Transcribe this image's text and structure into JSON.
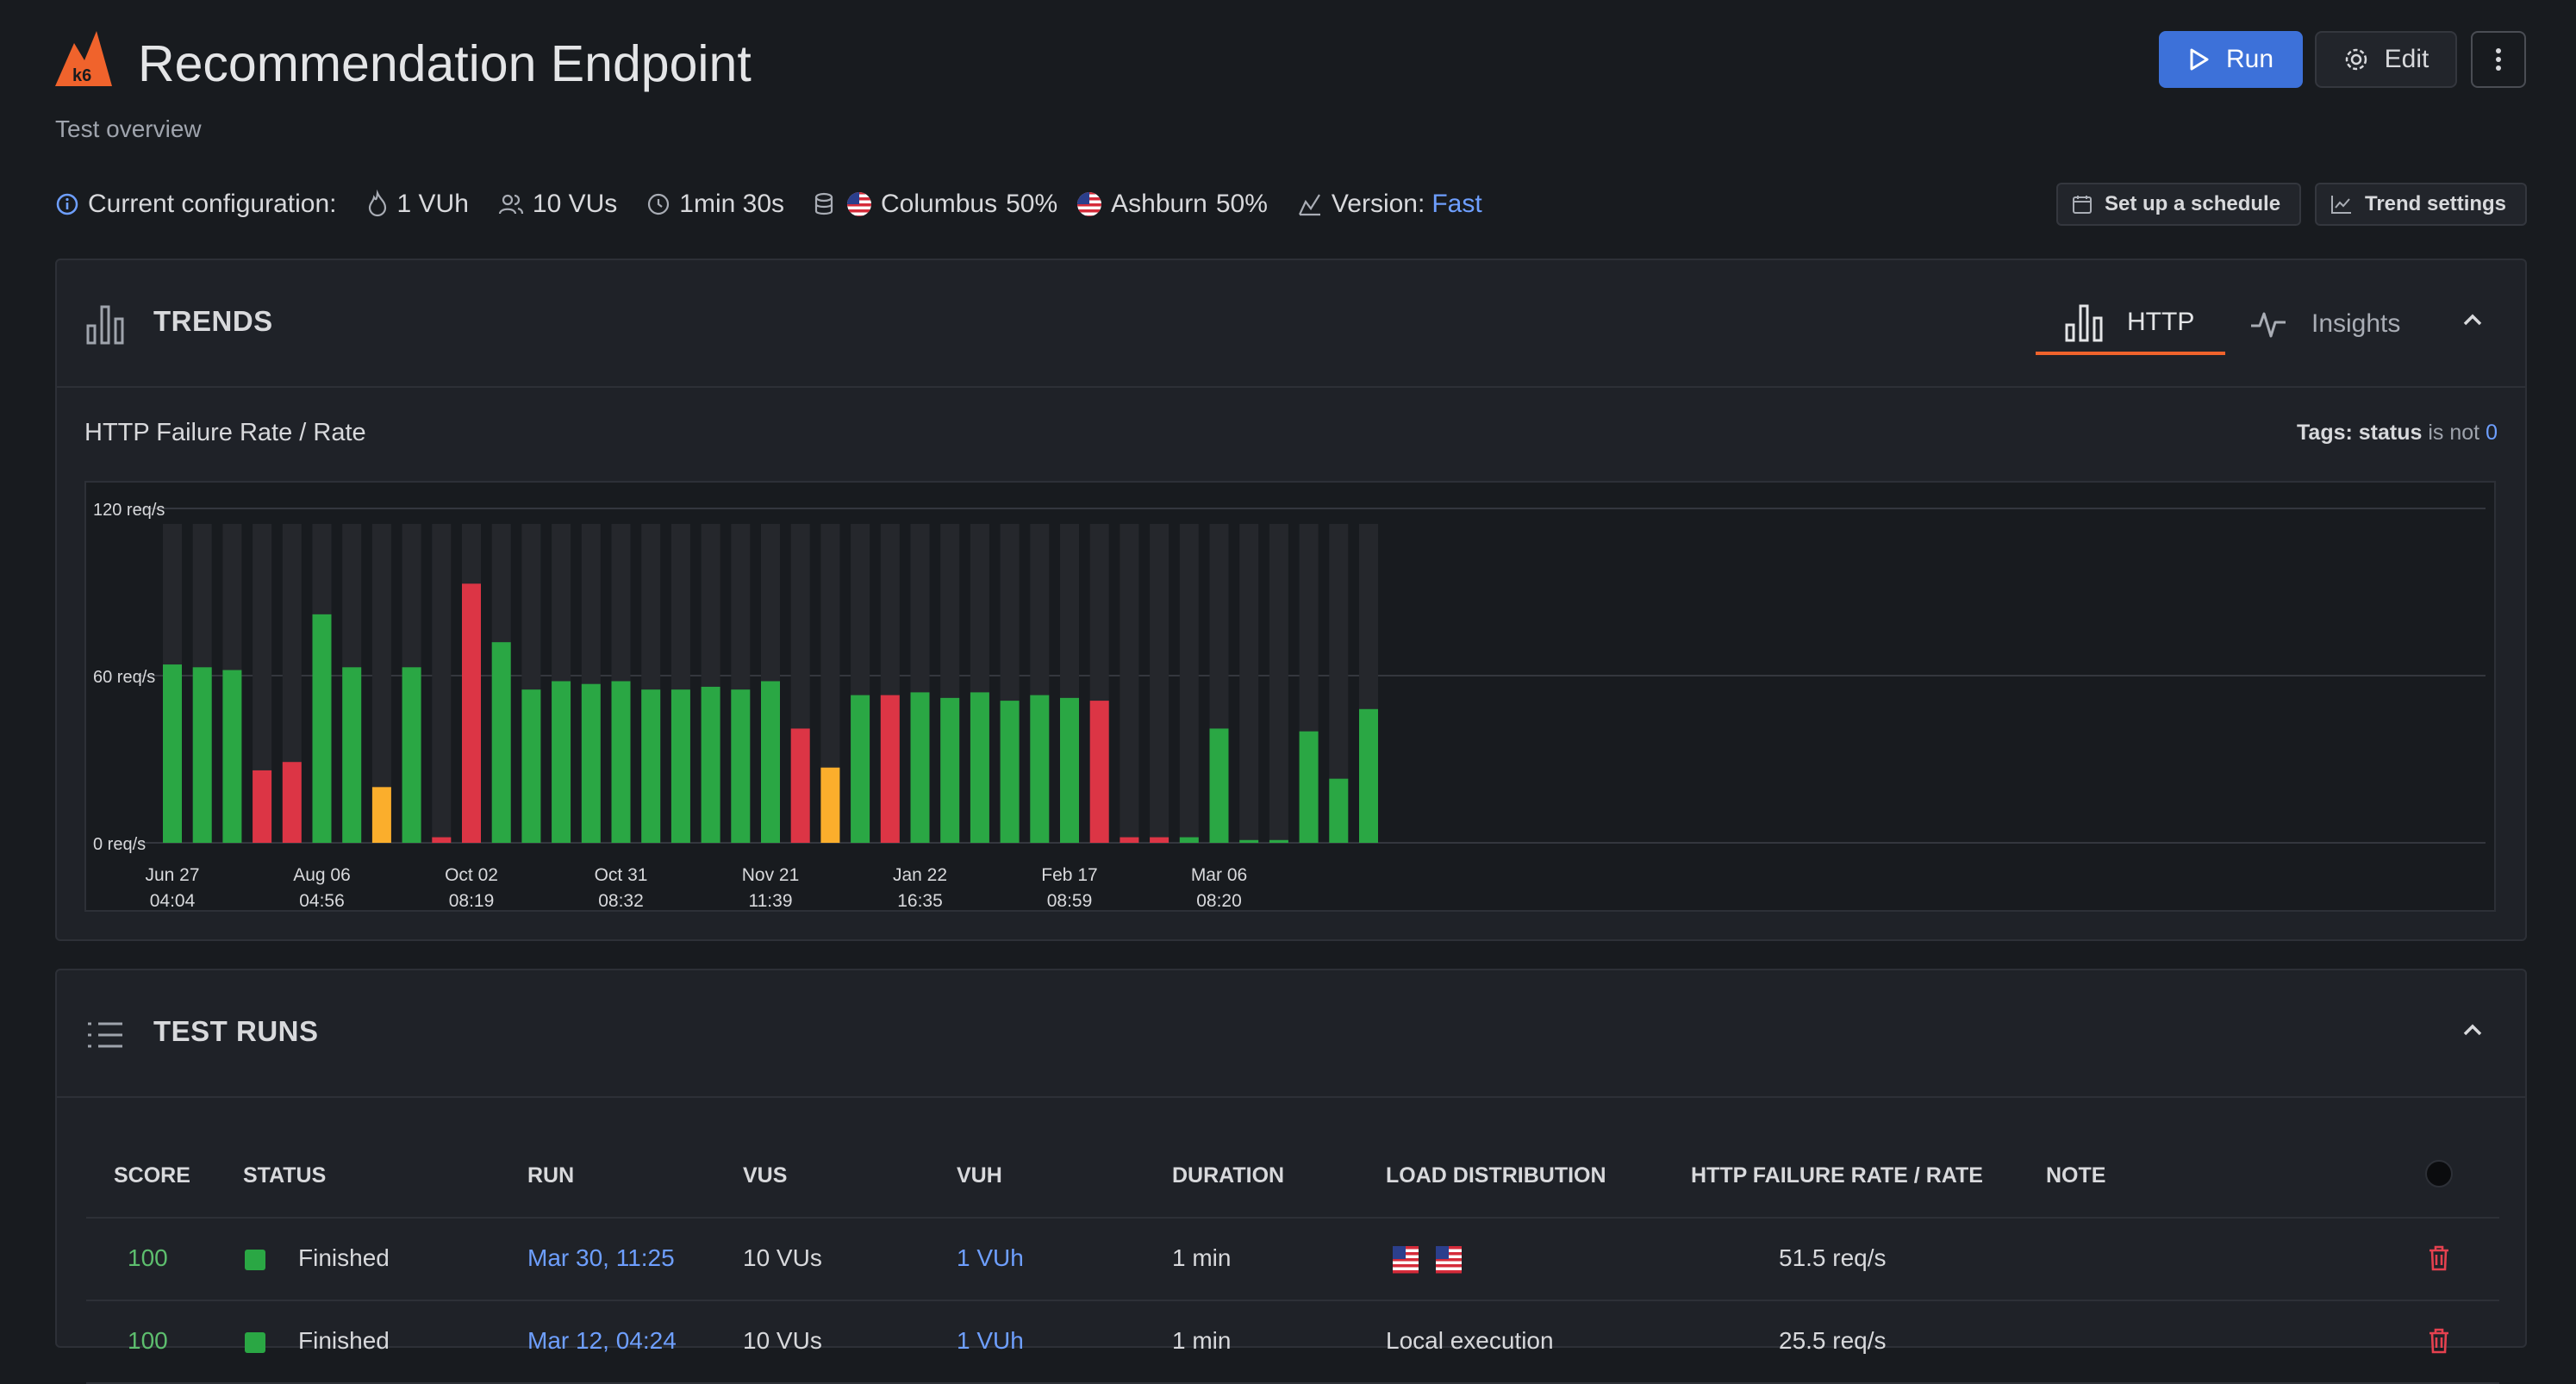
{
  "header": {
    "title": "Recommendation Endpoint",
    "subtitle": "Test overview",
    "run_label": "Run",
    "edit_label": "Edit",
    "logo_text": "k6"
  },
  "config": {
    "label": "Current configuration:",
    "vuh": "1 VUh",
    "vus": "10 VUs",
    "duration": "1min 30s",
    "locations": [
      {
        "name": "Columbus",
        "share": "50%"
      },
      {
        "name": "Ashburn",
        "share": "50%"
      }
    ],
    "version_label": "Version:",
    "version_value": "Fast",
    "schedule_button": "Set up a schedule",
    "trend_button": "Trend settings"
  },
  "trends": {
    "title": "TRENDS",
    "tabs": [
      {
        "label": "HTTP",
        "active": true
      },
      {
        "label": "Insights",
        "active": false
      }
    ],
    "chart_title": "HTTP Failure Rate / Rate",
    "tags": {
      "prefix": "Tags:",
      "key": "status",
      "op": "is not",
      "value": "0"
    }
  },
  "chart_data": {
    "type": "bar",
    "title": "HTTP Failure Rate / Rate",
    "ylabel": "",
    "xlabel": "",
    "ylim": [
      0,
      120
    ],
    "y_ticks": [
      "0 req/s",
      "60 req/s",
      "120 req/s"
    ],
    "x_ticks": [
      {
        "date": "Jun 27",
        "time": "04:04",
        "index": 0
      },
      {
        "date": "Aug 06",
        "time": "04:56",
        "index": 5
      },
      {
        "date": "Oct 02",
        "time": "08:19",
        "index": 10
      },
      {
        "date": "Oct 31",
        "time": "08:32",
        "index": 15
      },
      {
        "date": "Nov 21",
        "time": "11:39",
        "index": 20
      },
      {
        "date": "Jan 22",
        "time": "16:35",
        "index": 25
      },
      {
        "date": "Feb 17",
        "time": "08:59",
        "index": 30
      },
      {
        "date": "Mar 06",
        "time": "08:20",
        "index": 35
      }
    ],
    "colors": {
      "pass": "#2aa744",
      "fail": "#dc3545",
      "warn": "#fbae2c",
      "track": "#25272c"
    },
    "values": [
      64,
      63,
      62,
      26,
      29,
      82,
      63,
      20,
      63,
      2,
      93,
      72,
      55,
      58,
      57,
      58,
      55,
      55,
      56,
      55,
      58,
      41,
      27,
      53,
      53,
      54,
      52,
      54,
      51,
      53,
      52,
      51,
      2,
      2,
      2,
      41,
      1,
      1,
      40,
      23,
      48
    ],
    "statuses": [
      "pass",
      "pass",
      "pass",
      "fail",
      "fail",
      "pass",
      "pass",
      "warn",
      "pass",
      "fail",
      "fail",
      "pass",
      "pass",
      "pass",
      "pass",
      "pass",
      "pass",
      "pass",
      "pass",
      "pass",
      "pass",
      "fail",
      "warn",
      "pass",
      "fail",
      "pass",
      "pass",
      "pass",
      "pass",
      "pass",
      "pass",
      "fail",
      "fail",
      "fail",
      "pass",
      "pass",
      "pass",
      "pass",
      "pass",
      "pass",
      "pass"
    ]
  },
  "runs": {
    "title": "TEST RUNS",
    "columns": [
      "SCORE",
      "STATUS",
      "RUN",
      "VUS",
      "VUH",
      "DURATION",
      "LOAD DISTRIBUTION",
      "HTTP FAILURE RATE / RATE",
      "NOTE"
    ],
    "rows": [
      {
        "score": "100",
        "status": "Finished",
        "run": "Mar 30, 11:25",
        "vus": "10 VUs",
        "vuh": "1 VUh",
        "duration": "1 min",
        "load": "",
        "rate": "51.5 req/s",
        "note": ""
      },
      {
        "score": "100",
        "status": "Finished",
        "run": "Mar 12, 04:24",
        "vus": "10 VUs",
        "vuh": "1 VUh",
        "duration": "1 min",
        "load": "Local execution",
        "rate": "25.5 req/s",
        "note": ""
      }
    ]
  }
}
